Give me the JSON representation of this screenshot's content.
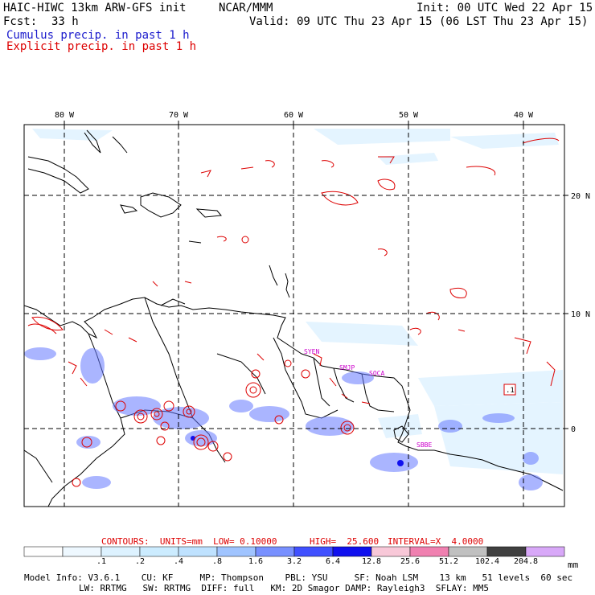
{
  "header": {
    "model": "HAIC-HIWC 13km ARW-GFS init",
    "org": "NCAR/MMM",
    "init": "Init: 00 UTC Wed 22 Apr 15",
    "fcst_label": "Fcst:",
    "fcst_value": "33 h",
    "valid": "Valid: 09 UTC Thu 23 Apr 15 (06 LST Thu 23 Apr 15)",
    "legend_cumulus": "Cumulus precip. in past 1 h",
    "legend_explicit": "Explicit precip. in past 1 h",
    "cumulus_color": "#1a1acc",
    "explicit_color": "#dd0000"
  },
  "map": {
    "lon_labels": [
      "80 W",
      "70 W",
      "60 W",
      "50 W",
      "40 W"
    ],
    "lat_labels": [
      "20 N",
      "10 N",
      "0"
    ],
    "stations": [
      "SYEN",
      "SMJP",
      "SOCA",
      "SBBE"
    ],
    "box_label": ".1"
  },
  "contours_line": {
    "contours": "CONTOURS:  UNITS=mm  LOW= 0.10000",
    "high": "HIGH=  25.600",
    "interval": "INTERVAL=X  4.0000"
  },
  "colorbar": {
    "labels": [
      ".1",
      ".2",
      ".4",
      ".8",
      "1.6",
      "3.2",
      "6.4",
      "12.8",
      "25.6",
      "51.2",
      "102.4",
      "204.8"
    ],
    "units": "mm",
    "colors": [
      "#ffffff",
      "#eef8ff",
      "#ddf2ff",
      "#ccecff",
      "#bfe2ff",
      "#a0c4ff",
      "#7890ff",
      "#4050ff",
      "#1010ee",
      "#f8c8d8",
      "#f080b0",
      "#c0c0c0",
      "#404040",
      "#d8a8f8"
    ]
  },
  "model_info": {
    "line1": "Model Info: V3.6.1    CU: KF     MP: Thompson    PBL: YSU     SF: Noah LSM    13 km   51 levels  60 sec",
    "line2": "LW: RRTMG   SW: RRTMG  DIFF: full   KM: 2D Smagor DAMP: Rayleigh3  SFLAY: MM5"
  }
}
